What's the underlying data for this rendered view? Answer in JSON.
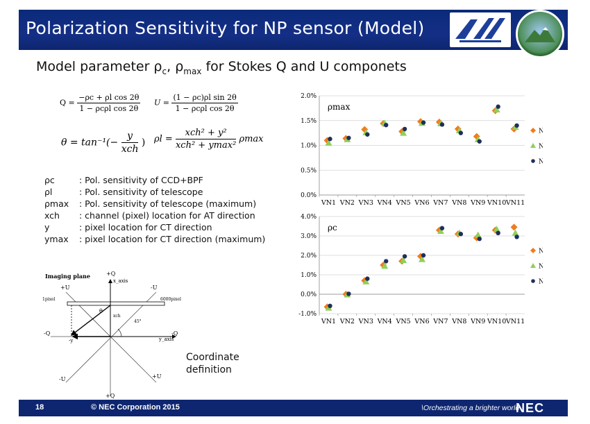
{
  "header": {
    "title": "Polarization Sensitivity for NP sensor (Model)"
  },
  "subtitle": {
    "prefix": "Model parameter ρ",
    "c_sub": "c",
    "mid": ", ρ",
    "max_sub": "max",
    "suffix": " for Stokes Q and U componets"
  },
  "equations": {
    "q_left": "Q =",
    "q_num": "−ρc + ρl cos 2θ",
    "q_den": "1 − ρcρl cos 2θ",
    "u_left": "U =",
    "u_num": "(1 − ρc)ρl sin 2θ",
    "u_den": "1 − ρcρl cos 2θ",
    "theta_left": "θ = tan⁻¹(−",
    "theta_num": "y",
    "theta_den": "xch",
    "theta_close": ")",
    "rho_left": "ρl =",
    "rho_num": "xch² + y²",
    "rho_den": "xch² + ymax²",
    "rho_right": "ρmax"
  },
  "definitions": [
    {
      "symbol": "ρc",
      "text": ": Pol. sensitivity of CCD+BPF"
    },
    {
      "symbol": "ρl",
      "text": ": Pol. sensitivity of telescope"
    },
    {
      "symbol": "ρmax",
      "text": ": Pol. sensitivity of telescope (maximum)"
    },
    {
      "symbol": "xch",
      "text": ": channel (pixel) location for AT direction"
    },
    {
      "symbol": "y",
      "text": ": pixel location for CT direction"
    },
    {
      "symbol": "ymax",
      "text": ": pixel location for CT direction (maximum)"
    }
  ],
  "diagram": {
    "imaging_plane": "Imaging plane",
    "plus_q_top": "+Q",
    "x_axis": "x_axis",
    "plus_u_left": "+U",
    "minus_u_right": "-U",
    "pixel_1": "1pixel",
    "pixel_6000": "6000pixel",
    "theta": "θ",
    "xch": "xch",
    "angle": "45°",
    "minus_q_left": "-Q",
    "minus_y": "-y",
    "minus_q_right": "-Q",
    "y_axis": "y_axis",
    "minus_u_bottom": "-U",
    "plus_u_bottom": "+U",
    "plus_q_bottom": "+Q",
    "note_line1": "Coordinate",
    "note_line2": "definition"
  },
  "chart_data": [
    {
      "type": "scatter",
      "annotation": "ρmax",
      "categories": [
        "VN1",
        "VN2",
        "VN3",
        "VN4",
        "VN5",
        "VN6",
        "VN7",
        "VN8",
        "VN9",
        "VN10",
        "VN11"
      ],
      "ylim": [
        0,
        2.0
      ],
      "yticks": [
        "0.0%",
        "0.5%",
        "1.0%",
        "1.5%",
        "2.0%"
      ],
      "grid": true,
      "legend": "right",
      "series": [
        {
          "name": "NPR",
          "marker": "diamond",
          "color": "#f07c1e",
          "values": [
            1.1,
            1.14,
            1.32,
            1.44,
            1.28,
            1.48,
            1.47,
            1.33,
            1.18,
            1.7,
            1.33
          ]
        },
        {
          "name": "NPN",
          "marker": "triangle",
          "color": "#8fcf5a",
          "values": [
            1.05,
            1.12,
            1.26,
            1.45,
            1.25,
            1.45,
            1.44,
            1.3,
            1.12,
            1.72,
            1.37
          ]
        },
        {
          "name": "NPL",
          "marker": "circle",
          "color": "#1f2f5a",
          "values": [
            1.13,
            1.15,
            1.22,
            1.41,
            1.33,
            1.46,
            1.42,
            1.25,
            1.08,
            1.78,
            1.4
          ]
        }
      ]
    },
    {
      "type": "scatter",
      "annotation": "ρc",
      "categories": [
        "VN1",
        "VN2",
        "VN3",
        "VN4",
        "VN5",
        "VN6",
        "VN7",
        "VN8",
        "VN9",
        "VN10",
        "VN11"
      ],
      "ylim": [
        -1.0,
        4.0
      ],
      "yticks": [
        "-1.0%",
        "0.0%",
        "1.0%",
        "2.0%",
        "3.0%",
        "4.0%"
      ],
      "grid": true,
      "legend": "right",
      "series": [
        {
          "name": "NPR",
          "marker": "diamond",
          "color": "#f07c1e",
          "values": [
            -0.65,
            0.0,
            0.7,
            1.5,
            1.7,
            1.95,
            3.3,
            3.1,
            2.9,
            3.3,
            3.45
          ]
        },
        {
          "name": "NPN",
          "marker": "triangle",
          "color": "#8fcf5a",
          "values": [
            -0.7,
            -0.02,
            0.65,
            1.45,
            1.75,
            1.8,
            3.25,
            3.15,
            3.05,
            3.35,
            3.15
          ]
        },
        {
          "name": "NPL",
          "marker": "circle",
          "color": "#1f2f5a",
          "values": [
            -0.6,
            0.02,
            0.8,
            1.7,
            1.95,
            2.0,
            3.4,
            3.1,
            2.85,
            3.15,
            2.95
          ]
        }
      ]
    }
  ],
  "footer": {
    "page": "18",
    "copyright": "© NEC Corporation 2015",
    "tagline": "\\Orchestrating a brighter world",
    "logo": "NEC"
  }
}
